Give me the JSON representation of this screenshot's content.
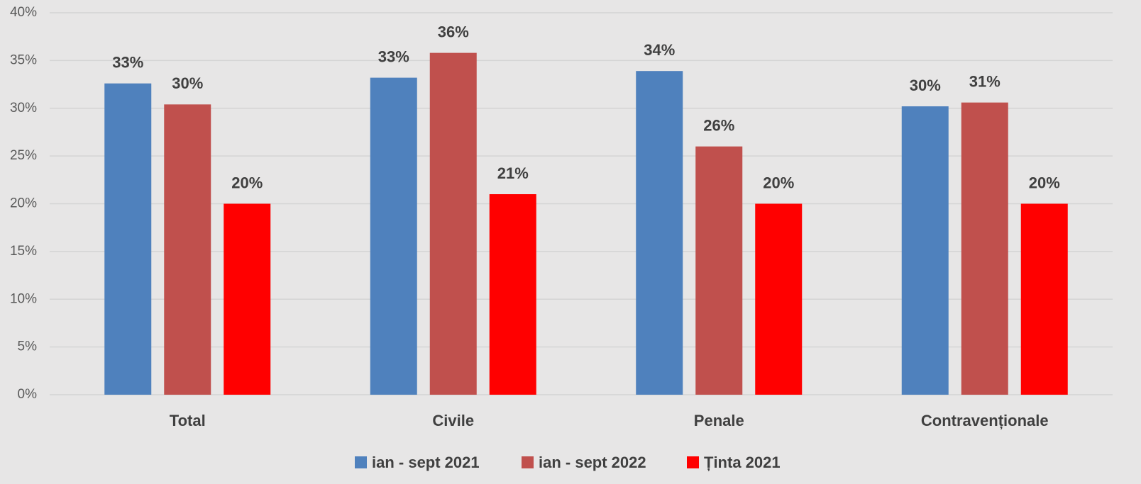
{
  "chart_data": {
    "type": "bar",
    "categories": [
      "Total",
      "Civile",
      "Penale",
      "Contravenționale"
    ],
    "series": [
      {
        "name": "ian - sept 2021",
        "color": "#4f81bd",
        "values": [
          32.6,
          33.2,
          33.9,
          30.2
        ],
        "value_labels": [
          "33%",
          "33%",
          "34%",
          "30%"
        ]
      },
      {
        "name": "ian - sept 2022",
        "color": "#c0504d",
        "values": [
          30.4,
          35.8,
          26.0,
          30.6
        ],
        "value_labels": [
          "30%",
          "36%",
          "26%",
          "31%"
        ]
      },
      {
        "name": "Ținta 2021",
        "color": "#ff0000",
        "values": [
          20,
          21,
          20,
          20
        ],
        "value_labels": [
          "20%",
          "21%",
          "20%",
          "20%"
        ]
      }
    ],
    "ylim": [
      0,
      40
    ],
    "yticks": [
      {
        "value": 0,
        "label": "0%"
      },
      {
        "value": 5,
        "label": "5%"
      },
      {
        "value": 10,
        "label": "10%"
      },
      {
        "value": 15,
        "label": "15%"
      },
      {
        "value": 20,
        "label": "20%"
      },
      {
        "value": 25,
        "label": "25%"
      },
      {
        "value": 30,
        "label": "30%"
      },
      {
        "value": 35,
        "label": "35%"
      },
      {
        "value": 40,
        "label": "40%"
      }
    ],
    "grid": true,
    "legend": "bottom"
  }
}
